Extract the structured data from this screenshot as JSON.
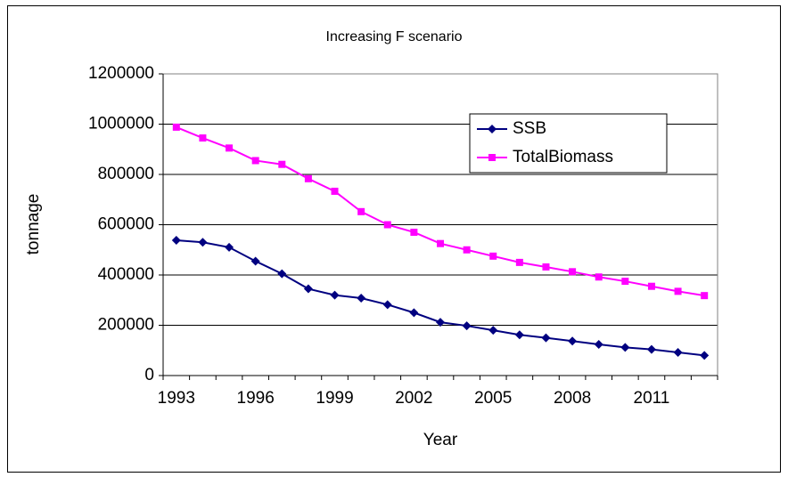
{
  "chart_data": {
    "type": "line",
    "title": "Increasing F scenario",
    "x_label": "Year",
    "y_label": "tonnage",
    "categories": [
      "1993",
      null,
      null,
      "1996",
      null,
      null,
      "1999",
      null,
      null,
      "2002",
      null,
      null,
      "2005",
      null,
      null,
      "2008",
      null,
      null,
      "2011",
      null,
      null
    ],
    "series": [
      {
        "name": "SSB",
        "color": "#000080",
        "marker": "diamond",
        "values": [
          538000,
          530000,
          510000,
          455000,
          405000,
          345000,
          320000,
          308000,
          282000,
          250000,
          212000,
          198000,
          180000,
          162000,
          150000,
          137000,
          124000,
          112000,
          104000,
          92000,
          80000
        ]
      },
      {
        "name": "TotalBiomass",
        "color": "#ff00ff",
        "marker": "square",
        "values": [
          988000,
          945000,
          905000,
          855000,
          840000,
          783000,
          733000,
          652000,
          600000,
          570000,
          525000,
          500000,
          475000,
          450000,
          432000,
          413000,
          392000,
          375000,
          355000,
          335000,
          318000
        ]
      }
    ],
    "ylim": [
      0,
      1200000
    ],
    "yticks": [
      0,
      200000,
      400000,
      600000,
      800000,
      1000000,
      1200000
    ],
    "grid": true,
    "legend": "top-right"
  }
}
